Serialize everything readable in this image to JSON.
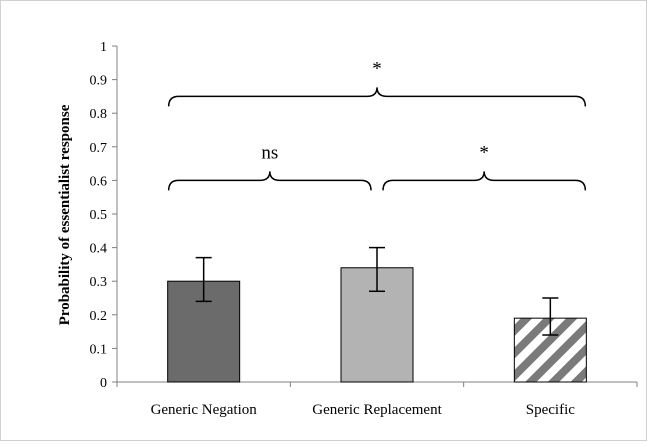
{
  "chart_data": {
    "type": "bar",
    "title": "",
    "xlabel": "",
    "ylabel": "Probability of essentialist response",
    "ylim": [
      0,
      1
    ],
    "yticks": [
      "0",
      "0.1",
      "0.2",
      "0.3",
      "0.4",
      "0.5",
      "0.6",
      "0.7",
      "0.8",
      "0.9",
      "1"
    ],
    "categories": [
      "Generic Negation",
      "Generic Replacement",
      "Specific"
    ],
    "values": [
      0.3,
      0.34,
      0.19
    ],
    "error_bars": [
      {
        "low": 0.24,
        "high": 0.37
      },
      {
        "low": 0.27,
        "high": 0.4
      },
      {
        "low": 0.14,
        "high": 0.25
      }
    ],
    "bar_styles": [
      {
        "fill": "#6b6b6b",
        "pattern": "solid"
      },
      {
        "fill": "#b3b3b3",
        "pattern": "solid"
      },
      {
        "fill": "#ffffff",
        "pattern": "diagonal-stripes",
        "stripe_color": "#7a7a7a"
      }
    ],
    "grid": false,
    "legend": "none",
    "significance": [
      {
        "from": 0,
        "to": 1,
        "label": "ns",
        "level": 0.6
      },
      {
        "from": 1,
        "to": 2,
        "label": "*",
        "level": 0.6
      },
      {
        "from": 0,
        "to": 2,
        "label": "*",
        "level": 0.85
      }
    ]
  }
}
